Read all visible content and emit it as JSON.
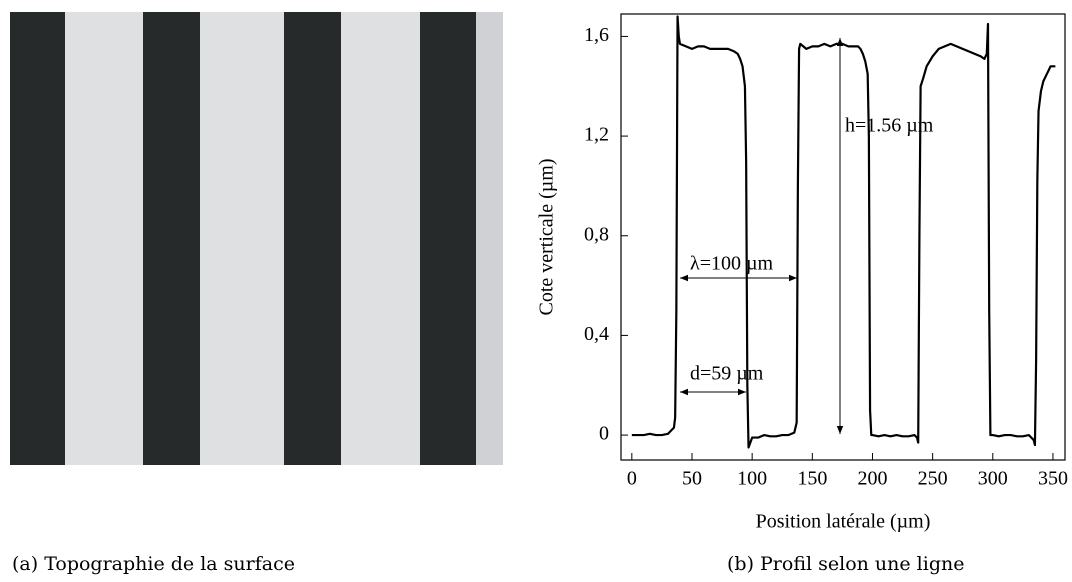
{
  "chart_data": {
    "type": "line",
    "ylabel": "Cote verticale (µm)",
    "xlabel": "Position latérale (µm)",
    "color": "#000000",
    "x": [
      0,
      5,
      10,
      15,
      20,
      25,
      30,
      35,
      36,
      37,
      38,
      39,
      40,
      45,
      50,
      55,
      60,
      65,
      70,
      75,
      80,
      85,
      88,
      90,
      92,
      94,
      95,
      96,
      97,
      100,
      105,
      110,
      115,
      120,
      125,
      130,
      135,
      137,
      138,
      139,
      140,
      145,
      150,
      155,
      160,
      165,
      170,
      175,
      180,
      185,
      188,
      190,
      192,
      194,
      196,
      197,
      198,
      199,
      200,
      205,
      210,
      215,
      220,
      225,
      230,
      235,
      237,
      238,
      239,
      240,
      242,
      245,
      250,
      255,
      260,
      265,
      270,
      275,
      280,
      285,
      290,
      293,
      295,
      296,
      297,
      298,
      300,
      305,
      310,
      315,
      320,
      325,
      330,
      334,
      335,
      336,
      337,
      338,
      340,
      342,
      345,
      348,
      352
    ],
    "values": [
      0,
      0,
      0,
      0.005,
      0,
      0,
      0.005,
      0.03,
      0.07,
      0.5,
      1.68,
      1.6,
      1.57,
      1.56,
      1.55,
      1.56,
      1.56,
      1.55,
      1.55,
      1.55,
      1.55,
      1.54,
      1.53,
      1.51,
      1.48,
      1.4,
      1.1,
      0.2,
      -0.05,
      -0.01,
      -0.01,
      0,
      -0.005,
      -0.005,
      0,
      0,
      0.01,
      0.05,
      1.0,
      1.55,
      1.57,
      1.55,
      1.56,
      1.56,
      1.57,
      1.56,
      1.57,
      1.57,
      1.56,
      1.56,
      1.56,
      1.55,
      1.53,
      1.5,
      1.45,
      1.2,
      0.1,
      0,
      0,
      -0.005,
      0,
      -0.005,
      0,
      -0.005,
      -0.005,
      0,
      -0.01,
      -0.03,
      0.8,
      1.4,
      1.43,
      1.48,
      1.52,
      1.55,
      1.56,
      1.57,
      1.56,
      1.55,
      1.54,
      1.53,
      1.52,
      1.51,
      1.53,
      1.65,
      0.5,
      0,
      0,
      -0.005,
      0,
      0,
      -0.005,
      -0.005,
      0,
      -0.02,
      -0.04,
      0.3,
      1.02,
      1.3,
      1.38,
      1.42,
      1.45,
      1.48,
      1.48
    ],
    "xlim": [
      -9,
      360
    ],
    "ylim": [
      -0.1,
      1.69
    ],
    "xticks": [
      0,
      50,
      100,
      150,
      200,
      250,
      300,
      350
    ],
    "yticks": [
      0,
      {
        "value": 0.4,
        "label": "0,4"
      },
      {
        "value": 0.8,
        "label": "0,8"
      },
      {
        "value": 1.2,
        "label": "1,2"
      },
      {
        "value": 1.6,
        "label": "1,6"
      }
    ],
    "annotations": [
      "h=1.56 µm",
      "λ=100 µm",
      "d=59 µm"
    ]
  },
  "captions": [
    "(a) Topographie de la surface",
    "(b) Profil selon une ligne"
  ]
}
